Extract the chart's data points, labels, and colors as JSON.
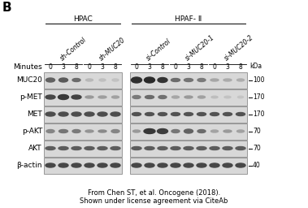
{
  "bg_color": "#ffffff",
  "title_B": "B",
  "cell_line_labels": [
    "HPAC",
    "HPAF- Ⅱ"
  ],
  "group_labels_hpac": [
    "sh-Control",
    "sh-MUC20"
  ],
  "group_labels_hpaf": [
    "si-Control",
    "si-MUC20-1",
    "si-MUC20-2"
  ],
  "minutes_label": "Minutes",
  "time_points": [
    "0",
    "3",
    "8"
  ],
  "row_labels": [
    "MUC20",
    "p-MET",
    "MET",
    "p-AKT",
    "AKT",
    "β-actin"
  ],
  "kda_labels": [
    "100",
    "170",
    "170",
    "70",
    "70",
    "40"
  ],
  "kda_label_header": "kDa",
  "caption_line1": "From Chen ST, et al. Oncogene (2018).",
  "caption_line2": "Shown under license agreement via CiteAb",
  "font_size_main": 6.5,
  "font_size_small": 5.5,
  "font_size_B": 11,
  "panel_bg": "#d8d8d8",
  "panel_edge": "#888888",
  "band_colors": {
    "strong": [
      0.2,
      0.25,
      0.3
    ],
    "medium": [
      0.45,
      0.5,
      0.55
    ],
    "faint": [
      0.65,
      0.7,
      0.75
    ],
    "absent": [
      0.82,
      0.85,
      0.88
    ]
  }
}
